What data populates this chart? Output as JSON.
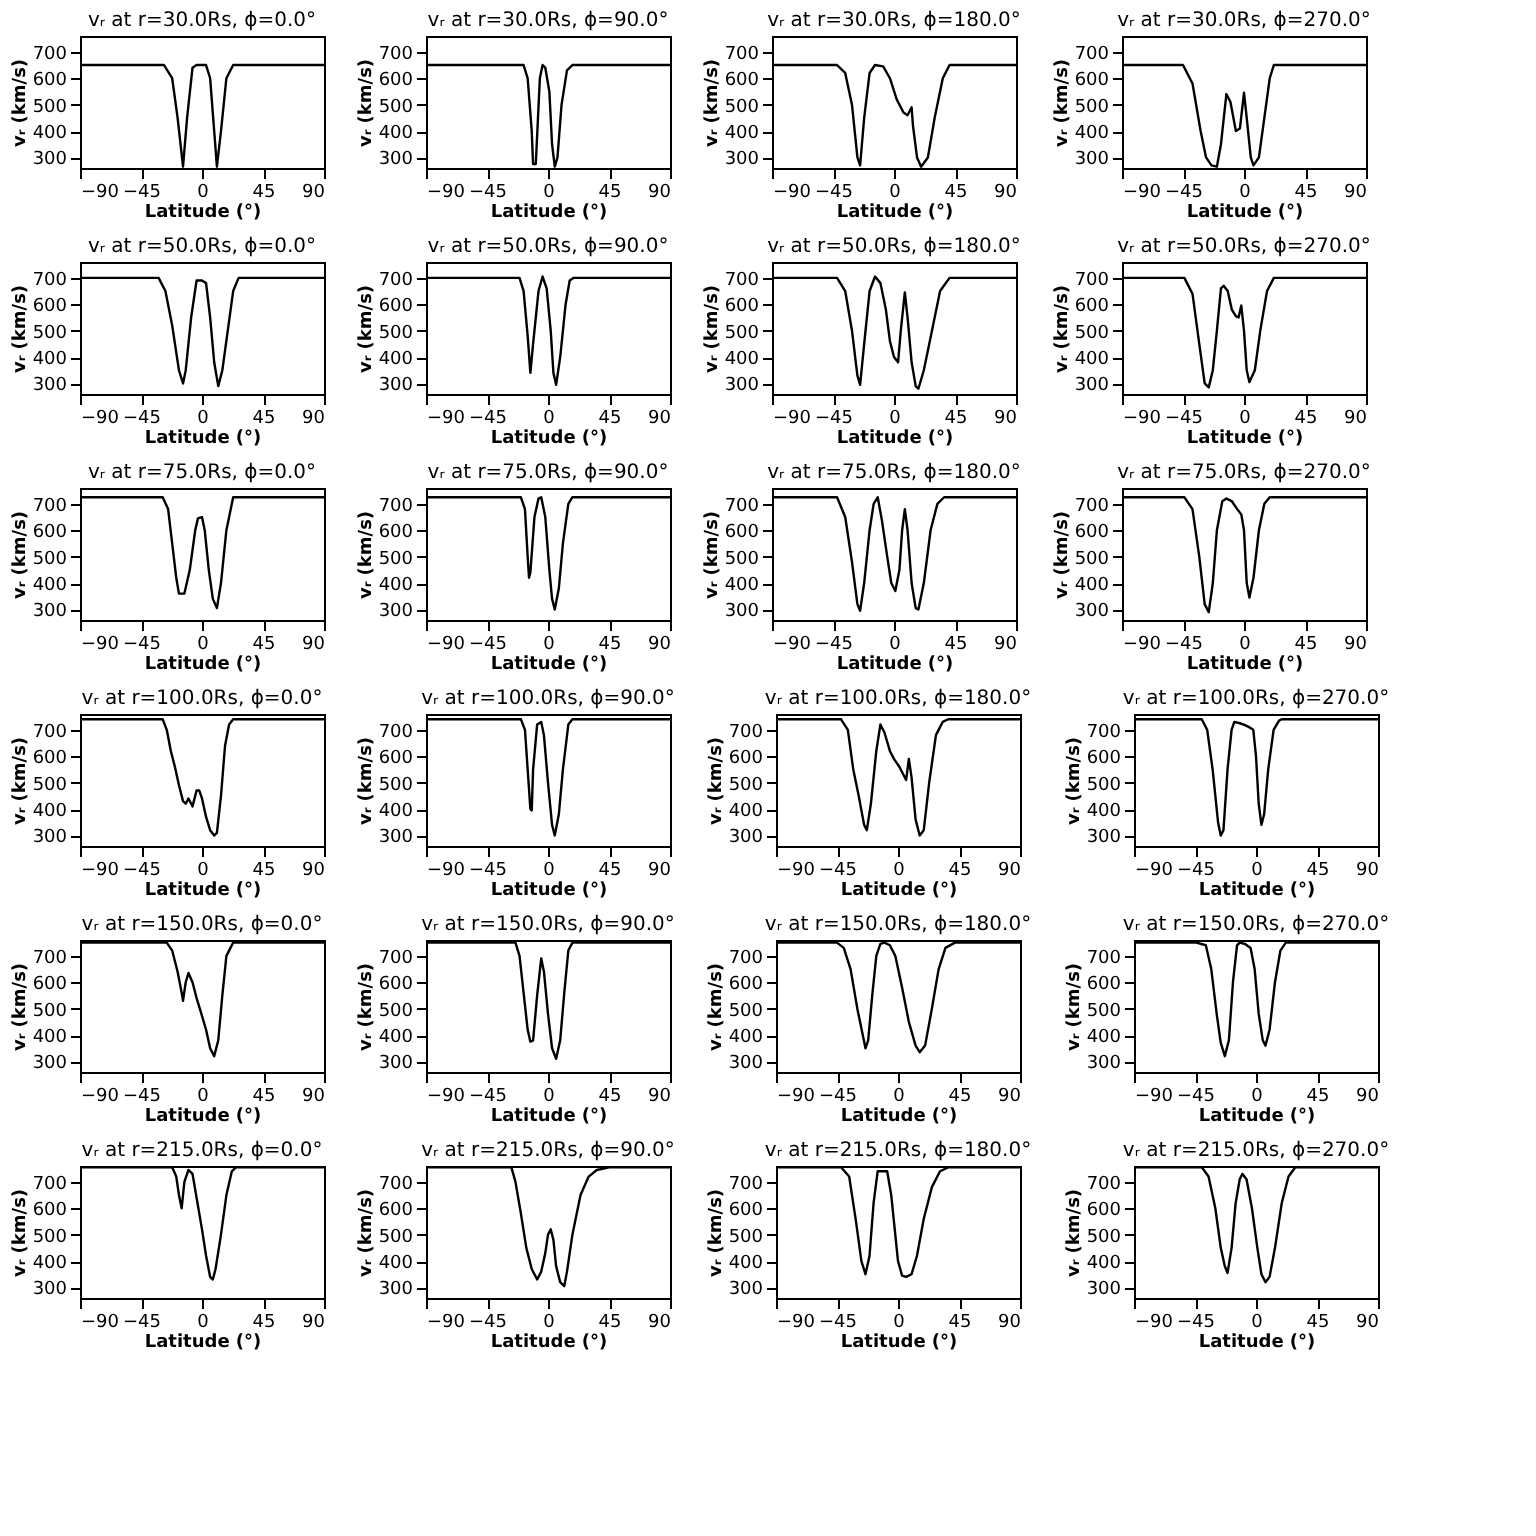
{
  "chart_data": [
    {
      "type": "line",
      "title": "vᵣ at r=30.0Rs, ϕ=0.0°",
      "xlabel": "Latitude (°)",
      "ylabel": "vᵣ (km/s)",
      "color": "#000000",
      "xlim": [
        -90,
        90
      ],
      "xticks": [
        -90,
        -45,
        0,
        45,
        90
      ],
      "ylim": [
        260,
        760
      ],
      "yticks": [
        300,
        400,
        500,
        600,
        700
      ],
      "x": [
        -90,
        -28,
        -22,
        -18,
        -14,
        -11,
        -7,
        -4,
        3,
        6,
        9,
        11,
        14,
        18,
        23,
        90
      ],
      "values": [
        650,
        650,
        600,
        450,
        265,
        450,
        640,
        650,
        650,
        600,
        400,
        265,
        400,
        600,
        650,
        650
      ]
    },
    {
      "type": "line",
      "title": "vᵣ at r=30.0Rs, ϕ=90.0°",
      "xlabel": "Latitude (°)",
      "ylabel": "vᵣ (km/s)",
      "color": "#000000",
      "xlim": [
        -90,
        90
      ],
      "xticks": [
        -90,
        -45,
        0,
        45,
        90
      ],
      "ylim": [
        260,
        760
      ],
      "yticks": [
        300,
        400,
        500,
        600,
        700
      ],
      "x": [
        -90,
        -18,
        -15,
        -12,
        -11,
        -9,
        -6,
        -4,
        -2,
        1,
        3,
        5,
        7,
        10,
        14,
        18,
        90
      ],
      "values": [
        650,
        650,
        600,
        400,
        275,
        275,
        600,
        650,
        640,
        550,
        350,
        265,
        300,
        500,
        630,
        650,
        650
      ]
    },
    {
      "type": "line",
      "title": "vᵣ at r=30.0Rs, ϕ=180.0°",
      "xlabel": "Latitude (°)",
      "ylabel": "vᵣ (km/s)",
      "color": "#000000",
      "xlim": [
        -90,
        90
      ],
      "xticks": [
        -90,
        -45,
        0,
        45,
        90
      ],
      "ylim": [
        260,
        760
      ],
      "yticks": [
        300,
        400,
        500,
        600,
        700
      ],
      "x": [
        -90,
        -42,
        -36,
        -31,
        -27,
        -25,
        -22,
        -18,
        -14,
        -8,
        -3,
        2,
        7,
        10,
        13,
        14,
        17,
        20,
        25,
        30,
        36,
        41,
        90
      ],
      "values": [
        650,
        650,
        620,
        500,
        300,
        270,
        450,
        620,
        650,
        645,
        600,
        520,
        470,
        460,
        490,
        420,
        300,
        265,
        300,
        450,
        600,
        650,
        650
      ]
    },
    {
      "type": "line",
      "title": "vᵣ at r=30.0Rs, ϕ=270.0°",
      "xlabel": "Latitude (°)",
      "ylabel": "vᵣ (km/s)",
      "color": "#000000",
      "xlim": [
        -90,
        90
      ],
      "xticks": [
        -90,
        -45,
        0,
        45,
        90
      ],
      "ylim": [
        260,
        760
      ],
      "yticks": [
        300,
        400,
        500,
        600,
        700
      ],
      "x": [
        -90,
        -45,
        -38,
        -32,
        -28,
        -24,
        -20,
        -17,
        -13,
        -10,
        -6,
        -3,
        0,
        2,
        5,
        7,
        11,
        15,
        19,
        22,
        90
      ],
      "values": [
        650,
        650,
        580,
        400,
        300,
        270,
        265,
        350,
        540,
        510,
        400,
        410,
        545,
        450,
        300,
        270,
        300,
        450,
        600,
        650,
        650
      ]
    },
    {
      "type": "line",
      "title": "vᵣ at r=50.0Rs, ϕ=0.0°",
      "xlabel": "Latitude (°)",
      "ylabel": "vᵣ (km/s)",
      "color": "#000000",
      "xlim": [
        -90,
        90
      ],
      "xticks": [
        -90,
        -45,
        0,
        45,
        90
      ],
      "ylim": [
        260,
        760
      ],
      "yticks": [
        300,
        400,
        500,
        600,
        700
      ],
      "x": [
        -90,
        -32,
        -27,
        -22,
        -17,
        -14,
        -12,
        -8,
        -4,
        0,
        3,
        6,
        9,
        12,
        15,
        19,
        23,
        27,
        90
      ],
      "values": [
        700,
        700,
        650,
        520,
        350,
        300,
        350,
        550,
        690,
        690,
        680,
        550,
        380,
        290,
        350,
        500,
        650,
        700,
        700
      ]
    },
    {
      "type": "line",
      "title": "vᵣ at r=50.0Rs, ϕ=90.0°",
      "xlabel": "Latitude (°)",
      "ylabel": "vᵣ (km/s)",
      "color": "#000000",
      "xlim": [
        -90,
        90
      ],
      "xticks": [
        -90,
        -45,
        0,
        45,
        90
      ],
      "ylim": [
        260,
        760
      ],
      "yticks": [
        300,
        400,
        500,
        600,
        700
      ],
      "x": [
        -90,
        -21,
        -18,
        -15,
        -13,
        -11,
        -7,
        -4,
        -1,
        2,
        4,
        6,
        9,
        13,
        16,
        19,
        90
      ],
      "values": [
        700,
        700,
        650,
        480,
        340,
        450,
        650,
        705,
        660,
        500,
        340,
        295,
        400,
        600,
        690,
        700,
        700
      ]
    },
    {
      "type": "line",
      "title": "vᵣ at r=50.0Rs, ϕ=180.0°",
      "xlabel": "Latitude (°)",
      "ylabel": "vᵣ (km/s)",
      "color": "#000000",
      "xlim": [
        -90,
        90
      ],
      "xticks": [
        -90,
        -45,
        0,
        45,
        90
      ],
      "ylim": [
        260,
        760
      ],
      "yticks": [
        300,
        400,
        500,
        600,
        700
      ],
      "x": [
        -90,
        -42,
        -36,
        -31,
        -27,
        -25,
        -22,
        -18,
        -14,
        -10,
        -6,
        -3,
        0,
        3,
        5,
        8,
        10,
        13,
        16,
        18,
        22,
        28,
        34,
        41,
        90
      ],
      "values": [
        700,
        700,
        650,
        500,
        330,
        295,
        450,
        650,
        705,
        680,
        580,
        460,
        400,
        380,
        500,
        645,
        550,
        380,
        290,
        280,
        350,
        500,
        650,
        700,
        700
      ]
    },
    {
      "type": "line",
      "title": "vᵣ at r=50.0Rs, ϕ=270.0°",
      "xlabel": "Latitude (°)",
      "ylabel": "vᵣ (km/s)",
      "color": "#000000",
      "xlim": [
        -90,
        90
      ],
      "xticks": [
        -90,
        -45,
        0,
        45,
        90
      ],
      "ylim": [
        260,
        760
      ],
      "yticks": [
        300,
        400,
        500,
        600,
        700
      ],
      "x": [
        -90,
        -44,
        -38,
        -33,
        -29,
        -26,
        -23,
        -20,
        -17,
        -15,
        -12,
        -9,
        -6,
        -4,
        -2,
        0,
        2,
        4,
        8,
        12,
        17,
        22,
        90
      ],
      "values": [
        700,
        700,
        640,
        450,
        300,
        285,
        350,
        500,
        660,
        670,
        650,
        580,
        555,
        550,
        595,
        500,
        350,
        305,
        350,
        500,
        650,
        700,
        700
      ]
    },
    {
      "type": "line",
      "title": "vᵣ at r=75.0Rs, ϕ=0.0°",
      "xlabel": "Latitude (°)",
      "ylabel": "vᵣ (km/s)",
      "color": "#000000",
      "xlim": [
        -90,
        90
      ],
      "xticks": [
        -90,
        -45,
        0,
        45,
        90
      ],
      "ylim": [
        260,
        760
      ],
      "yticks": [
        300,
        400,
        500,
        600,
        700
      ],
      "x": [
        -90,
        -29,
        -25,
        -22,
        -19,
        -17,
        -13,
        -9,
        -5,
        -3,
        0,
        2,
        5,
        8,
        11,
        14,
        18,
        23,
        90
      ],
      "values": [
        725,
        725,
        680,
        550,
        420,
        360,
        360,
        450,
        600,
        645,
        650,
        600,
        450,
        340,
        305,
        400,
        600,
        725,
        725
      ]
    },
    {
      "type": "line",
      "title": "vᵣ at r=75.0Rs, ϕ=90.0°",
      "xlabel": "Latitude (°)",
      "ylabel": "vᵣ (km/s)",
      "color": "#000000",
      "xlim": [
        -90,
        90
      ],
      "xticks": [
        -90,
        -45,
        0,
        45,
        90
      ],
      "ylim": [
        260,
        760
      ],
      "yticks": [
        300,
        400,
        500,
        600,
        700
      ],
      "x": [
        -90,
        -20,
        -17,
        -15,
        -14,
        -13,
        -10,
        -7,
        -5,
        -2,
        1,
        3,
        5,
        8,
        11,
        15,
        18,
        90
      ],
      "values": [
        725,
        725,
        680,
        500,
        420,
        440,
        650,
        720,
        725,
        650,
        450,
        340,
        300,
        380,
        550,
        700,
        725,
        725
      ]
    },
    {
      "type": "line",
      "title": "vᵣ at r=75.0Rs, ϕ=180.0°",
      "xlabel": "Latitude (°)",
      "ylabel": "vᵣ (km/s)",
      "color": "#000000",
      "xlim": [
        -90,
        90
      ],
      "xticks": [
        -90,
        -45,
        0,
        45,
        90
      ],
      "ylim": [
        260,
        760
      ],
      "yticks": [
        300,
        400,
        500,
        600,
        700
      ],
      "x": [
        -90,
        -42,
        -36,
        -31,
        -27,
        -25,
        -22,
        -18,
        -15,
        -12,
        -9,
        -5,
        -2,
        1,
        4,
        6,
        8,
        10,
        13,
        16,
        18,
        22,
        27,
        32,
        37,
        90
      ],
      "values": [
        725,
        725,
        650,
        480,
        320,
        295,
        400,
        600,
        700,
        725,
        640,
        500,
        400,
        370,
        450,
        600,
        680,
        600,
        400,
        305,
        300,
        400,
        600,
        700,
        725,
        725
      ]
    },
    {
      "type": "line",
      "title": "vᵣ at r=75.0Rs, ϕ=270.0°",
      "xlabel": "Latitude (°)",
      "ylabel": "vᵣ (km/s)",
      "color": "#000000",
      "xlim": [
        -90,
        90
      ],
      "xticks": [
        -90,
        -45,
        0,
        45,
        90
      ],
      "ylim": [
        260,
        760
      ],
      "yticks": [
        300,
        400,
        500,
        600,
        700
      ],
      "x": [
        -90,
        -44,
        -38,
        -33,
        -29,
        -26,
        -23,
        -20,
        -16,
        -13,
        -9,
        -5,
        -2,
        0,
        2,
        4,
        7,
        11,
        15,
        19,
        90
      ],
      "values": [
        725,
        725,
        680,
        500,
        320,
        290,
        400,
        600,
        710,
        720,
        710,
        680,
        660,
        600,
        400,
        345,
        420,
        600,
        700,
        725,
        725
      ]
    },
    {
      "type": "line",
      "title": "vᵣ at r=100.0Rs, ϕ=0.0°",
      "xlabel": "Latitude (°)",
      "ylabel": "vᵣ (km/s)",
      "color": "#000000",
      "xlim": [
        -90,
        90
      ],
      "xticks": [
        -90,
        -45,
        0,
        45,
        90
      ],
      "ylim": [
        260,
        760
      ],
      "yticks": [
        300,
        400,
        500,
        600,
        700
      ],
      "x": [
        -90,
        -29,
        -26,
        -23,
        -20,
        -17,
        -14,
        -12,
        -10,
        -7,
        -4,
        -2,
        0,
        3,
        6,
        9,
        11,
        14,
        17,
        20,
        23,
        90
      ],
      "values": [
        740,
        740,
        700,
        620,
        560,
        490,
        430,
        420,
        440,
        410,
        470,
        470,
        440,
        370,
        320,
        300,
        310,
        450,
        640,
        720,
        740,
        740
      ]
    },
    {
      "type": "line",
      "title": "vᵣ at r=100.0Rs, ϕ=90.0°",
      "xlabel": "Latitude (°)",
      "ylabel": "vᵣ (km/s)",
      "color": "#000000",
      "xlim": [
        -90,
        90
      ],
      "xticks": [
        -90,
        -45,
        0,
        45,
        90
      ],
      "ylim": [
        260,
        760
      ],
      "yticks": [
        300,
        400,
        500,
        600,
        700
      ],
      "x": [
        -90,
        -20,
        -17,
        -15,
        -13,
        -12,
        -11,
        -8,
        -5,
        -3,
        0,
        3,
        5,
        8,
        11,
        15,
        18,
        90
      ],
      "values": [
        740,
        740,
        700,
        550,
        400,
        395,
        550,
        720,
        730,
        680,
        500,
        340,
        300,
        380,
        550,
        720,
        740,
        740
      ]
    },
    {
      "type": "line",
      "title": "vᵣ at r=100.0Rs, ϕ=180.0°",
      "xlabel": "Latitude (°)",
      "ylabel": "vᵣ (km/s)",
      "color": "#000000",
      "xlim": [
        -90,
        90
      ],
      "xticks": [
        -90,
        -45,
        0,
        45,
        90
      ],
      "ylim": [
        260,
        760
      ],
      "yticks": [
        300,
        400,
        500,
        600,
        700
      ],
      "x": [
        -90,
        -42,
        -37,
        -33,
        -29,
        -25,
        -23,
        -20,
        -16,
        -13,
        -10,
        -6,
        -3,
        1,
        4,
        6,
        8,
        10,
        13,
        16,
        19,
        23,
        28,
        33,
        37,
        90
      ],
      "values": [
        740,
        740,
        700,
        550,
        450,
        340,
        320,
        420,
        620,
        720,
        690,
        620,
        590,
        560,
        530,
        510,
        590,
        520,
        360,
        300,
        320,
        500,
        680,
        730,
        740,
        740
      ]
    },
    {
      "type": "line",
      "title": "vᵣ at r=100.0Rs, ϕ=270.0°",
      "xlabel": "Latitude (°)",
      "ylabel": "vᵣ (km/s)",
      "color": "#000000",
      "xlim": [
        -90,
        90
      ],
      "xticks": [
        -90,
        -45,
        0,
        45,
        90
      ],
      "ylim": [
        260,
        760
      ],
      "yticks": [
        300,
        400,
        500,
        600,
        700
      ],
      "x": [
        -90,
        -40,
        -36,
        -32,
        -28,
        -26,
        -24,
        -21,
        -18,
        -16,
        -12,
        -9,
        -5,
        -2,
        0,
        2,
        4,
        6,
        9,
        13,
        17,
        19,
        90
      ],
      "values": [
        740,
        740,
        700,
        550,
        350,
        300,
        320,
        550,
        700,
        730,
        725,
        720,
        710,
        700,
        600,
        420,
        340,
        380,
        550,
        700,
        735,
        740,
        740
      ]
    },
    {
      "type": "line",
      "title": "vᵣ at r=150.0Rs, ϕ=0.0°",
      "xlabel": "Latitude (°)",
      "ylabel": "vᵣ (km/s)",
      "color": "#000000",
      "xlim": [
        -90,
        90
      ],
      "xticks": [
        -90,
        -45,
        0,
        45,
        90
      ],
      "ylim": [
        260,
        760
      ],
      "yticks": [
        300,
        400,
        500,
        600,
        700
      ],
      "x": [
        -90,
        -26,
        -22,
        -18,
        -15,
        -14,
        -12,
        -10,
        -7,
        -4,
        -1,
        3,
        6,
        9,
        12,
        15,
        18,
        23,
        90
      ],
      "values": [
        750,
        750,
        720,
        640,
        560,
        530,
        600,
        635,
        600,
        540,
        490,
        420,
        350,
        320,
        380,
        550,
        700,
        750,
        750
      ]
    },
    {
      "type": "line",
      "title": "vᵣ at r=150.0Rs, ϕ=90.0°",
      "xlabel": "Latitude (°)",
      "ylabel": "vᵣ (km/s)",
      "color": "#000000",
      "xlim": [
        -90,
        90
      ],
      "xticks": [
        -90,
        -45,
        0,
        45,
        90
      ],
      "ylim": [
        260,
        760
      ],
      "yticks": [
        300,
        400,
        500,
        600,
        700
      ],
      "x": [
        -90,
        -24,
        -21,
        -18,
        -15,
        -13,
        -11,
        -8,
        -5,
        -3,
        0,
        3,
        6,
        9,
        12,
        15,
        18,
        90
      ],
      "values": [
        750,
        750,
        700,
        560,
        420,
        375,
        380,
        550,
        690,
        640,
        480,
        350,
        310,
        380,
        560,
        720,
        750,
        750
      ]
    },
    {
      "type": "line",
      "title": "vᵣ at r=150.0Rs, ϕ=180.0°",
      "xlabel": "Latitude (°)",
      "ylabel": "vᵣ (km/s)",
      "color": "#000000",
      "xlim": [
        -90,
        90
      ],
      "xticks": [
        -90,
        -45,
        0,
        45,
        90
      ],
      "ylim": [
        260,
        760
      ],
      "yticks": [
        300,
        400,
        500,
        600,
        700
      ],
      "x": [
        -90,
        -45,
        -40,
        -35,
        -30,
        -26,
        -24,
        -22,
        -19,
        -16,
        -13,
        -10,
        -6,
        -2,
        3,
        8,
        13,
        16,
        20,
        25,
        30,
        35,
        42,
        90
      ],
      "values": [
        750,
        750,
        730,
        650,
        500,
        400,
        350,
        380,
        550,
        700,
        745,
        750,
        740,
        700,
        580,
        450,
        360,
        335,
        360,
        500,
        650,
        730,
        750,
        750
      ]
    },
    {
      "type": "line",
      "title": "vᵣ at r=150.0Rs, ϕ=270.0°",
      "xlabel": "Latitude (°)",
      "ylabel": "vᵣ (km/s)",
      "color": "#000000",
      "xlim": [
        -90,
        90
      ],
      "xticks": [
        -90,
        -45,
        0,
        45,
        90
      ],
      "ylim": [
        260,
        760
      ],
      "yticks": [
        300,
        400,
        500,
        600,
        700
      ],
      "x": [
        -90,
        -44,
        -37,
        -33,
        -29,
        -26,
        -23,
        -20,
        -17,
        -14,
        -12,
        -8,
        -4,
        -1,
        2,
        5,
        7,
        10,
        14,
        18,
        22,
        90
      ],
      "values": [
        750,
        750,
        740,
        650,
        480,
        370,
        320,
        380,
        600,
        740,
        750,
        745,
        730,
        650,
        480,
        380,
        360,
        420,
        600,
        720,
        750,
        750
      ]
    },
    {
      "type": "line",
      "title": "vᵣ at r=215.0Rs, ϕ=0.0°",
      "xlabel": "Latitude (°)",
      "ylabel": "vᵣ (km/s)",
      "color": "#000000",
      "xlim": [
        -90,
        90
      ],
      "xticks": [
        -90,
        -45,
        0,
        45,
        90
      ],
      "ylim": [
        260,
        760
      ],
      "yticks": [
        300,
        400,
        500,
        600,
        700
      ],
      "x": [
        -90,
        -22,
        -19,
        -17,
        -15,
        -13,
        -10,
        -7,
        -4,
        0,
        3,
        6,
        8,
        10,
        14,
        18,
        22,
        25,
        90
      ],
      "values": [
        755,
        755,
        720,
        650,
        600,
        700,
        745,
        730,
        640,
        520,
        420,
        340,
        330,
        370,
        500,
        650,
        740,
        755,
        755
      ]
    },
    {
      "type": "line",
      "title": "vᵣ at r=215.0Rs, ϕ=90.0°",
      "xlabel": "Latitude (°)",
      "ylabel": "vᵣ (km/s)",
      "color": "#000000",
      "xlim": [
        -90,
        90
      ],
      "xticks": [
        -90,
        -45,
        0,
        45,
        90
      ],
      "ylim": [
        260,
        760
      ],
      "yticks": [
        300,
        400,
        500,
        600,
        700
      ],
      "x": [
        -90,
        -27,
        -24,
        -20,
        -16,
        -12,
        -8,
        -5,
        -2,
        0,
        2,
        4,
        6,
        9,
        12,
        14,
        18,
        24,
        30,
        36,
        45,
        90
      ],
      "values": [
        755,
        755,
        700,
        580,
        450,
        370,
        330,
        360,
        430,
        500,
        520,
        480,
        380,
        320,
        305,
        360,
        500,
        650,
        720,
        745,
        755,
        755
      ]
    },
    {
      "type": "line",
      "title": "vᵣ at r=215.0Rs, ϕ=180.0°",
      "xlabel": "Latitude (°)",
      "ylabel": "vᵣ (km/s)",
      "color": "#000000",
      "xlim": [
        -90,
        90
      ],
      "xticks": [
        -90,
        -45,
        0,
        45,
        90
      ],
      "ylim": [
        260,
        760
      ],
      "yticks": [
        300,
        400,
        500,
        600,
        700
      ],
      "x": [
        -90,
        -42,
        -36,
        -31,
        -27,
        -24,
        -21,
        -18,
        -15,
        -8,
        -5,
        -2,
        0,
        3,
        6,
        10,
        14,
        19,
        25,
        31,
        37,
        90
      ],
      "values": [
        755,
        755,
        720,
        550,
        400,
        350,
        420,
        620,
        740,
        740,
        650,
        500,
        400,
        345,
        340,
        350,
        420,
        560,
        680,
        740,
        755,
        755
      ]
    },
    {
      "type": "line",
      "title": "vᵣ at r=215.0Rs, ϕ=270.0°",
      "xlabel": "Latitude (°)",
      "ylabel": "vᵣ (km/s)",
      "color": "#000000",
      "xlim": [
        -90,
        90
      ],
      "xticks": [
        -90,
        -45,
        0,
        45,
        90
      ],
      "ylim": [
        260,
        760
      ],
      "yticks": [
        300,
        400,
        500,
        600,
        700
      ],
      "x": [
        -90,
        -40,
        -35,
        -30,
        -26,
        -23,
        -21,
        -18,
        -15,
        -12,
        -10,
        -7,
        -3,
        1,
        4,
        7,
        10,
        14,
        19,
        24,
        29,
        90
      ],
      "values": [
        755,
        755,
        720,
        600,
        450,
        380,
        355,
        450,
        620,
        710,
        730,
        710,
        600,
        450,
        350,
        320,
        340,
        450,
        620,
        720,
        755,
        755
      ]
    }
  ]
}
